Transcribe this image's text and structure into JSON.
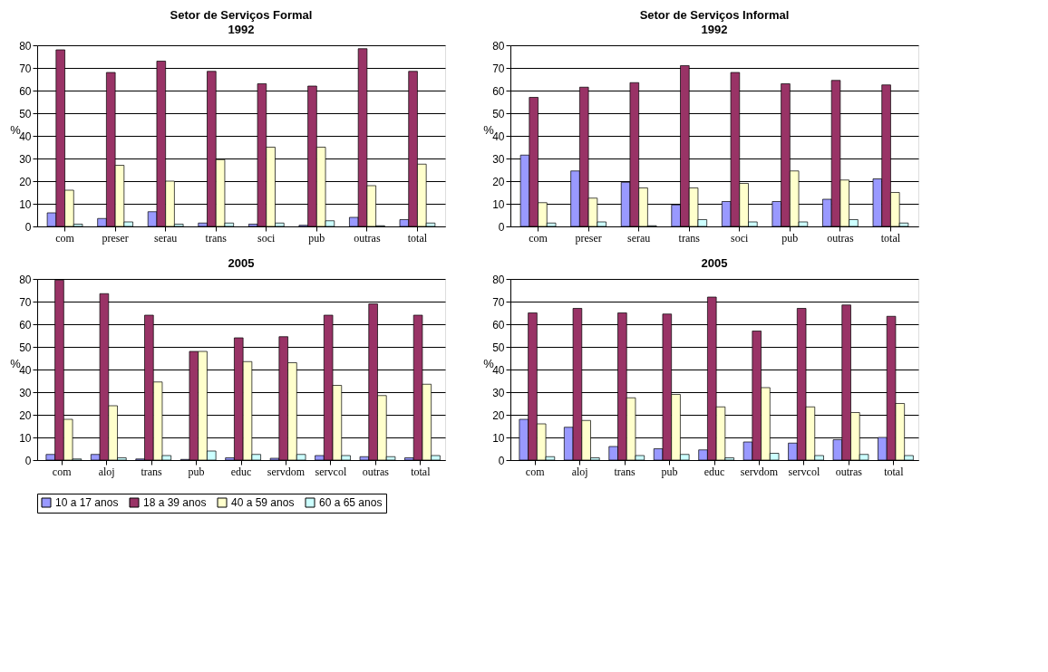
{
  "chart_data": [
    {
      "type": "bar",
      "title": "Setor de Serviços Formal",
      "subtitle": "1992",
      "ylabel": "%",
      "categories": [
        "com",
        "preser",
        "serau",
        "trans",
        "soci",
        "pub",
        "outras",
        "total"
      ],
      "ylim": [
        0,
        80
      ],
      "yticks": [
        0,
        10,
        20,
        30,
        40,
        50,
        60,
        70,
        80
      ],
      "grid": "y",
      "legend": "bottom",
      "series": [
        {
          "name": "10 a 17 anos",
          "color": "#9999ff",
          "values": [
            6,
            3.5,
            6.5,
            1.5,
            1,
            0.5,
            4,
            3
          ]
        },
        {
          "name": "18 a 39 anos",
          "color": "#993366",
          "values": [
            78,
            68,
            73,
            68.5,
            63,
            62,
            78.5,
            68.5
          ]
        },
        {
          "name": "40 a 59 anos",
          "color": "#ffffcc",
          "values": [
            16,
            27,
            20,
            29.5,
            35,
            35,
            18,
            27.5
          ]
        },
        {
          "name": "60 a 65 anos",
          "color": "#ccffff",
          "values": [
            1,
            2,
            1,
            1.5,
            1.5,
            2.5,
            0.3,
            1.5
          ]
        }
      ]
    },
    {
      "type": "bar",
      "title": "Setor de Serviços Informal",
      "subtitle": "1992",
      "ylabel": "%",
      "categories": [
        "com",
        "preser",
        "serau",
        "trans",
        "soci",
        "pub",
        "outras",
        "total"
      ],
      "ylim": [
        0,
        80
      ],
      "yticks": [
        0,
        10,
        20,
        30,
        40,
        50,
        60,
        70,
        80
      ],
      "grid": "y",
      "legend": "bottom",
      "series": [
        {
          "name": "10 a 17 anos",
          "color": "#9999ff",
          "values": [
            31.5,
            24.5,
            19.5,
            9.5,
            11,
            11,
            12,
            21
          ]
        },
        {
          "name": "18 a 39 anos",
          "color": "#993366",
          "values": [
            57,
            61.5,
            63.5,
            71,
            68,
            63,
            64.5,
            62.5
          ]
        },
        {
          "name": "40 a 59 anos",
          "color": "#ffffcc",
          "values": [
            10.5,
            12.5,
            17,
            17,
            19,
            24.5,
            20.5,
            15
          ]
        },
        {
          "name": "60 a 65 anos",
          "color": "#ccffff",
          "values": [
            1.5,
            2,
            0.3,
            3,
            2,
            2,
            3,
            1.5
          ]
        }
      ]
    },
    {
      "type": "bar",
      "title": "2005",
      "ylabel": "%",
      "categories": [
        "com",
        "aloj",
        "trans",
        "pub",
        "educ",
        "servdom",
        "servcol",
        "outras",
        "total"
      ],
      "ylim": [
        0,
        80
      ],
      "yticks": [
        0,
        10,
        20,
        30,
        40,
        50,
        60,
        70,
        80
      ],
      "grid": "y",
      "legend": "bottom",
      "series": [
        {
          "name": "10 a 17 anos",
          "color": "#9999ff",
          "values": [
            2.5,
            2.5,
            0.5,
            0.3,
            1,
            0.8,
            2,
            1.5,
            1
          ]
        },
        {
          "name": "18 a 39 anos",
          "color": "#993366",
          "values": [
            79.5,
            73.5,
            64,
            48,
            54,
            54.5,
            64,
            69,
            64
          ]
        },
        {
          "name": "40 a 59 anos",
          "color": "#ffffcc",
          "values": [
            18,
            24,
            34.5,
            48,
            43.5,
            43,
            33,
            28.5,
            33.5
          ]
        },
        {
          "name": "60 a 65 anos",
          "color": "#ccffff",
          "values": [
            0.5,
            1,
            2,
            4,
            2.5,
            2.5,
            2,
            1.5,
            2
          ]
        }
      ]
    },
    {
      "type": "bar",
      "title": "2005",
      "ylabel": "%",
      "categories": [
        "com",
        "aloj",
        "trans",
        "pub",
        "educ",
        "servdom",
        "servcol",
        "outras",
        "total"
      ],
      "ylim": [
        0,
        80
      ],
      "yticks": [
        0,
        10,
        20,
        30,
        40,
        50,
        60,
        70,
        80
      ],
      "grid": "y",
      "legend": "bottom",
      "series": [
        {
          "name": "10 a 17 anos",
          "color": "#9999ff",
          "values": [
            18,
            14.5,
            6,
            5,
            4.5,
            8,
            7.5,
            9,
            10
          ]
        },
        {
          "name": "18 a 39 anos",
          "color": "#993366",
          "values": [
            65,
            67,
            65,
            64.5,
            72,
            57,
            67,
            68.5,
            63.5
          ]
        },
        {
          "name": "40 a 59 anos",
          "color": "#ffffcc",
          "values": [
            16,
            17.5,
            27.5,
            29,
            23.5,
            32,
            23.5,
            21,
            25
          ]
        },
        {
          "name": "60 a 65 anos",
          "color": "#ccffff",
          "values": [
            1.5,
            1,
            2,
            2.5,
            1,
            3,
            2,
            2.5,
            2
          ]
        }
      ]
    }
  ]
}
